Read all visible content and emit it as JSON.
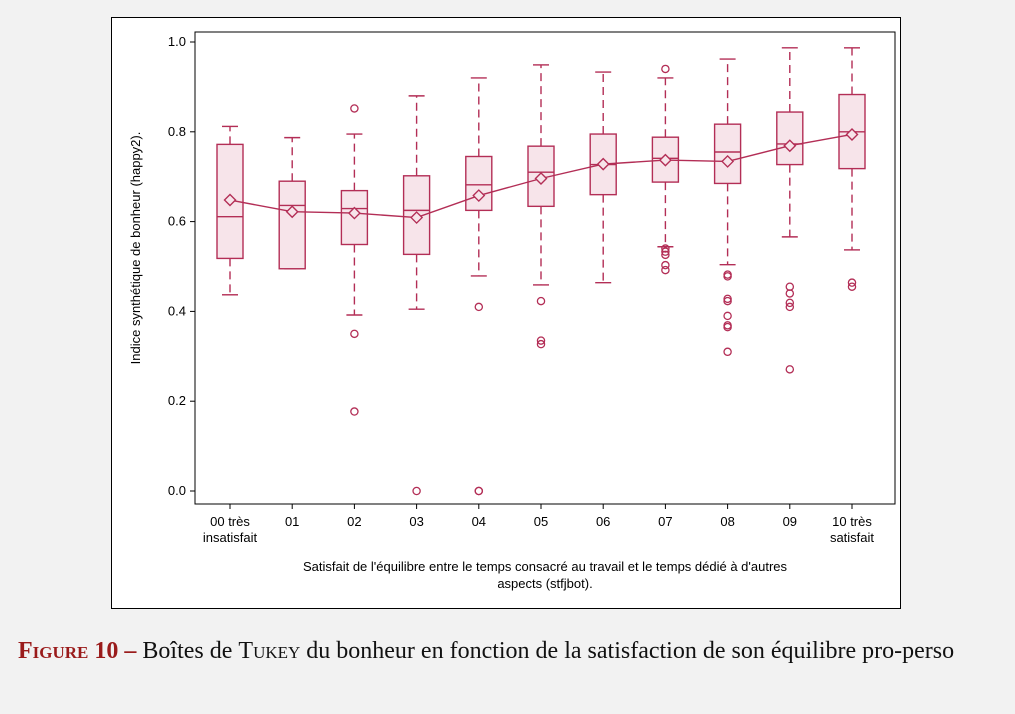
{
  "chart_data": {
    "type": "box",
    "ylabel": "Indice synthétique de bonheur (happy2).",
    "xlabel_lines": [
      "Satisfait de l'équilibre entre le temps consacré au travail et le temps dédié à d'autres",
      "aspects (stfjbot)."
    ],
    "ylim": [
      0.0,
      1.0
    ],
    "yticks": [
      0.0,
      0.2,
      0.4,
      0.6,
      0.8,
      1.0
    ],
    "ytick_labels": [
      "0.0",
      "0.2",
      "0.4",
      "0.6",
      "0.8",
      "1.0"
    ],
    "categories": [
      [
        "00 très",
        "insatisfait"
      ],
      [
        "01"
      ],
      [
        "02"
      ],
      [
        "03"
      ],
      [
        "04"
      ],
      [
        "05"
      ],
      [
        "06"
      ],
      [
        "07"
      ],
      [
        "08"
      ],
      [
        "09"
      ],
      [
        "10 très",
        "satisfait"
      ]
    ],
    "boxes": [
      {
        "whisker_low": 0.437,
        "q1": 0.518,
        "median": 0.611,
        "q3": 0.772,
        "whisker_high": 0.812,
        "mean": 0.648,
        "outliers": []
      },
      {
        "whisker_low": 0.495,
        "q1": 0.495,
        "median": 0.636,
        "q3": 0.69,
        "whisker_high": 0.787,
        "mean": 0.622,
        "outliers": []
      },
      {
        "whisker_low": 0.392,
        "q1": 0.549,
        "median": 0.629,
        "q3": 0.669,
        "whisker_high": 0.795,
        "mean": 0.619,
        "outliers": [
          0.852,
          0.35,
          0.177
        ]
      },
      {
        "whisker_low": 0.405,
        "q1": 0.527,
        "median": 0.625,
        "q3": 0.702,
        "whisker_high": 0.88,
        "mean": 0.609,
        "outliers": [
          0.0
        ]
      },
      {
        "whisker_low": 0.479,
        "q1": 0.625,
        "median": 0.682,
        "q3": 0.745,
        "whisker_high": 0.92,
        "mean": 0.658,
        "outliers": [
          0.41,
          0.0,
          0.0
        ]
      },
      {
        "whisker_low": 0.459,
        "q1": 0.634,
        "median": 0.71,
        "q3": 0.768,
        "whisker_high": 0.949,
        "mean": 0.696,
        "outliers": [
          0.423,
          0.335,
          0.327
        ]
      },
      {
        "whisker_low": 0.464,
        "q1": 0.66,
        "median": 0.727,
        "q3": 0.795,
        "whisker_high": 0.933,
        "mean": 0.728,
        "outliers": []
      },
      {
        "whisker_low": 0.544,
        "q1": 0.688,
        "median": 0.741,
        "q3": 0.788,
        "whisker_high": 0.92,
        "mean": 0.737,
        "outliers": [
          0.94,
          0.54,
          0.533,
          0.526,
          0.503,
          0.492
        ]
      },
      {
        "whisker_low": 0.504,
        "q1": 0.685,
        "median": 0.755,
        "q3": 0.817,
        "whisker_high": 0.962,
        "mean": 0.734,
        "outliers": [
          0.482,
          0.478,
          0.428,
          0.423,
          0.39,
          0.369,
          0.365,
          0.31
        ]
      },
      {
        "whisker_low": 0.566,
        "q1": 0.727,
        "median": 0.773,
        "q3": 0.844,
        "whisker_high": 0.987,
        "mean": 0.769,
        "outliers": [
          0.455,
          0.44,
          0.419,
          0.41,
          0.271
        ]
      },
      {
        "whisker_low": 0.537,
        "q1": 0.718,
        "median": 0.8,
        "q3": 0.883,
        "whisker_high": 0.987,
        "mean": 0.794,
        "outliers": [
          0.464,
          0.455
        ]
      }
    ],
    "colors": {
      "stroke": "#b32e56",
      "fill": "#f7e4ea",
      "frame": "#000000"
    }
  },
  "caption": {
    "label": "Figure 10 –",
    "text_before": "Boîtes de",
    "name": "Tukey",
    "text_after": "du bonheur en fonction de la satisfaction de son équilibre pro-perso"
  }
}
